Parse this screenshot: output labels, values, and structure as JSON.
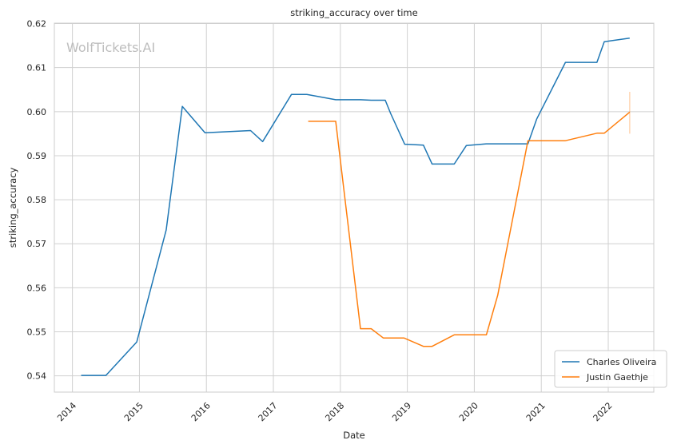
{
  "chart_data": {
    "type": "line",
    "title": "striking_accuracy over time",
    "xlabel": "Date",
    "ylabel": "striking_accuracy",
    "watermark": "WolfTickets.AI",
    "xlim": [
      2013.73,
      2022.68
    ],
    "ylim": [
      0.5363,
      0.6201
    ],
    "xticks": [
      2014,
      2015,
      2016,
      2017,
      2018,
      2019,
      2020,
      2021,
      2022
    ],
    "xtick_labels": [
      "2014",
      "2015",
      "2016",
      "2017",
      "2018",
      "2019",
      "2020",
      "2021",
      "2022"
    ],
    "yticks": [
      0.54,
      0.55,
      0.56,
      0.57,
      0.58,
      0.59,
      0.6,
      0.61,
      0.62
    ],
    "ytick_labels": [
      "0.54",
      "0.55",
      "0.56",
      "0.57",
      "0.58",
      "0.59",
      "0.60",
      "0.61",
      "0.62"
    ],
    "grid": true,
    "legend_position": "bottom-right",
    "series": [
      {
        "name": "Charles Oliveira",
        "color": "#1f77b4",
        "x": [
          2014.13,
          2014.5,
          2014.96,
          2015.4,
          2015.64,
          2015.98,
          2016.66,
          2016.84,
          2017.27,
          2017.5,
          2017.93,
          2018.3,
          2018.46,
          2018.67,
          2018.75,
          2018.96,
          2019.24,
          2019.37,
          2019.7,
          2019.88,
          2020.18,
          2020.5,
          2020.8,
          2020.93,
          2021.36,
          2021.83,
          2021.94,
          2022.32
        ],
        "y": [
          0.5401,
          0.5401,
          0.5477,
          0.5731,
          0.6012,
          0.5952,
          0.5957,
          0.5932,
          0.6039,
          0.6039,
          0.6027,
          0.6027,
          0.6026,
          0.6026,
          0.5996,
          0.5926,
          0.5924,
          0.5881,
          0.5881,
          0.5923,
          0.5927,
          0.5927,
          0.5927,
          0.5983,
          0.6112,
          0.6112,
          0.6159,
          0.6167
        ]
      },
      {
        "name": "Justin Gaethje",
        "color": "#ff7f0e",
        "x": [
          2017.52,
          2017.93,
          2018.3,
          2018.46,
          2018.64,
          2018.95,
          2019.24,
          2019.37,
          2019.7,
          2019.8,
          2020.18,
          2020.35,
          2020.8,
          2020.93,
          2021.36,
          2021.83,
          2021.94,
          2022.32
        ],
        "y": [
          0.5978,
          0.5978,
          0.5507,
          0.5507,
          0.5486,
          0.5486,
          0.5467,
          0.5467,
          0.5493,
          0.5493,
          0.5493,
          0.5583,
          0.5934,
          0.5934,
          0.5934,
          0.5951,
          0.5951,
          0.5999
        ]
      }
    ],
    "error_band": {
      "series": "Justin Gaethje",
      "x": 2022.32,
      "y_low": 0.595,
      "y_high": 0.6045
    }
  }
}
